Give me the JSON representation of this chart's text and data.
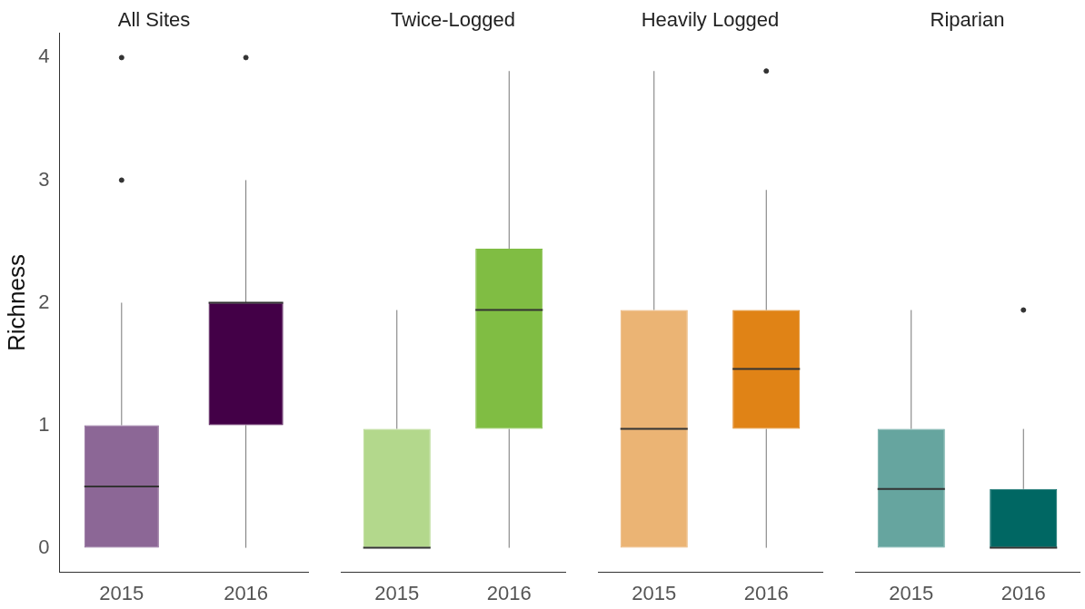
{
  "chart_data": [
    {
      "type": "box",
      "title": "All Sites",
      "ylabel": "Richness",
      "categories": [
        "2015",
        "2016"
      ],
      "colors": [
        "#8c6796",
        "#430047"
      ],
      "ylim": [
        -0.2,
        4.2
      ],
      "yticks": [
        0,
        1,
        2,
        3,
        4
      ],
      "grid": false,
      "boxes": [
        {
          "low": 0,
          "q1": 0,
          "median": 0.5,
          "q3": 1,
          "high": 2,
          "outliers": [
            3,
            4
          ]
        },
        {
          "low": 0,
          "q1": 1,
          "median": 2,
          "q3": 2,
          "high": 3,
          "outliers": [
            4
          ]
        }
      ]
    },
    {
      "type": "box",
      "title": "Twice-Logged",
      "categories": [
        "2015",
        "2016"
      ],
      "colors": [
        "#b3d88c",
        "#80bd43"
      ],
      "yticks": [
        0,
        1,
        2,
        3,
        4
      ],
      "grid": false,
      "tick_labels": "x",
      "boxes": [
        {
          "low": 0,
          "q1": 0,
          "median": 0,
          "q3": 0.97,
          "high": 1.94
        },
        {
          "low": 0,
          "q1": 0.97,
          "median": 1.94,
          "q3": 2.44,
          "high": 3.89
        }
      ]
    },
    {
      "type": "box",
      "title": "Heavily Logged",
      "categories": [
        "2015",
        "2016"
      ],
      "colors": [
        "#ebb474",
        "#e08316"
      ],
      "yticks": [
        0,
        1,
        2,
        3,
        4
      ],
      "grid": false,
      "tick_labels": "x",
      "boxes": [
        {
          "low": 0,
          "q1": 0,
          "median": 0.97,
          "q3": 1.94,
          "high": 3.89
        },
        {
          "low": 0,
          "q1": 0.97,
          "median": 1.46,
          "q3": 1.94,
          "high": 2.92,
          "outliers": [
            3.89
          ]
        }
      ]
    },
    {
      "type": "box",
      "title": "Riparian",
      "categories": [
        "2015",
        "2016"
      ],
      "colors": [
        "#66a59f",
        "#006763"
      ],
      "yticks": [
        0,
        1,
        2,
        3,
        4
      ],
      "grid": false,
      "tick_labels": "x",
      "boxes": [
        {
          "low": 0,
          "q1": 0,
          "median": 0.48,
          "q3": 0.97,
          "high": 1.94
        },
        {
          "low": 0,
          "q1": 0,
          "median": 0,
          "q3": 0.48,
          "high": 0.97,
          "outliers": [
            1.94
          ]
        }
      ]
    }
  ]
}
